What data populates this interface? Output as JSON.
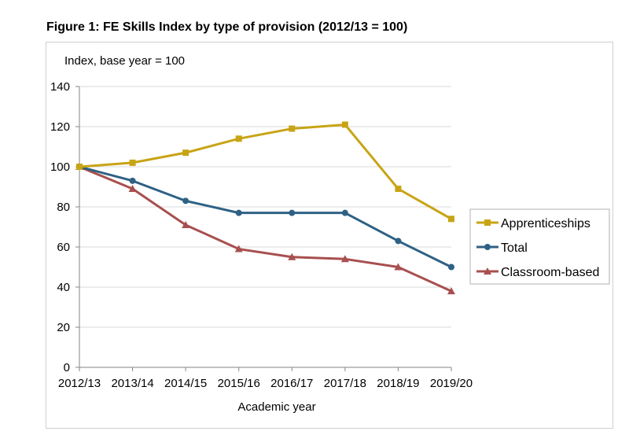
{
  "figure_title": "Figure 1: FE Skills Index by type of provision (2012/13 = 100)",
  "chart_data": {
    "type": "line",
    "title": "Figure 1: FE Skills Index by type of provision (2012/13 = 100)",
    "ylabel": "Index, base year = 100",
    "xlabel": "Academic year",
    "categories": [
      "2012/13",
      "2013/14",
      "2014/15",
      "2015/16",
      "2016/17",
      "2017/18",
      "2018/19",
      "2019/20"
    ],
    "ylim": [
      0,
      140
    ],
    "yticks": [
      0,
      20,
      40,
      60,
      80,
      100,
      120,
      140
    ],
    "grid": true,
    "legend_position": "right",
    "series": [
      {
        "name": "Apprenticeships",
        "color": "#c8a415",
        "marker": "square",
        "values": [
          100,
          102,
          107,
          114,
          119,
          121,
          89,
          74
        ]
      },
      {
        "name": "Total",
        "color": "#2e6184",
        "marker": "circle",
        "values": [
          100,
          93,
          83,
          77,
          77,
          77,
          63,
          50
        ]
      },
      {
        "name": "Classroom-based",
        "color": "#a84f4f",
        "marker": "triangle",
        "values": [
          100,
          89,
          71,
          59,
          55,
          54,
          50,
          38
        ]
      }
    ]
  }
}
